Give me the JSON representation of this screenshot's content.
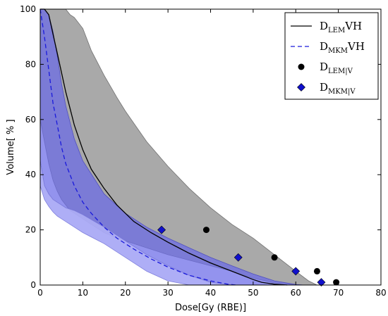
{
  "chart_data": {
    "type": "line",
    "title": "",
    "xlabel": "Dose[Gy (RBE)]",
    "ylabel": "Volume[ % ]",
    "xlim": [
      0,
      80
    ],
    "ylim": [
      0,
      100
    ],
    "xticks": [
      0,
      10,
      20,
      30,
      40,
      50,
      60,
      70,
      80
    ],
    "yticks": [
      0,
      20,
      40,
      60,
      80,
      100
    ],
    "grid": false,
    "legend_position": "top-right",
    "colors": {
      "lem": "#000000",
      "mkm": "#1a1adb",
      "lem_band": "#8c8c8c",
      "mkm_band": "#6a6ae8",
      "diamond": "#1010cc"
    },
    "legend": [
      {
        "main": "D",
        "sub": "LEM",
        "suffix": "VH",
        "marker": "solid-line"
      },
      {
        "main": "D",
        "sub": "MKM",
        "suffix": "VH",
        "marker": "dashed-line"
      },
      {
        "main": "D",
        "sub": "LEM|V",
        "suffix": "",
        "marker": "circle"
      },
      {
        "main": "D",
        "sub": "MKM|V",
        "suffix": "",
        "marker": "diamond"
      }
    ],
    "lem_curve": {
      "x": [
        0,
        1,
        2,
        3,
        4,
        5,
        6,
        7,
        8,
        10,
        12,
        15,
        18,
        22,
        26,
        30,
        35,
        40,
        45,
        50,
        52,
        55,
        58
      ],
      "y": [
        100,
        100,
        98,
        91,
        84,
        77,
        70,
        64,
        58,
        49,
        42,
        35,
        29,
        23,
        19,
        15.5,
        11.5,
        8,
        5,
        2,
        1,
        0.3,
        0
      ]
    },
    "lem_band": {
      "x": [
        0,
        1,
        2,
        3,
        4,
        5,
        6,
        7,
        8,
        10,
        12,
        15,
        18,
        20,
        25,
        30,
        35,
        40,
        45,
        50,
        55,
        60,
        63,
        65
      ],
      "upper": [
        100,
        100,
        100,
        100,
        100,
        100,
        100,
        98,
        97,
        93,
        85,
        76,
        68,
        63,
        52,
        43,
        35,
        28,
        22,
        17,
        11,
        5,
        1.5,
        0
      ],
      "lower": [
        60,
        52,
        44,
        38,
        34,
        31,
        29,
        27,
        26,
        24,
        22,
        19,
        17,
        16,
        13.5,
        11,
        9,
        7,
        5,
        2.5,
        0.8,
        0,
        0,
        0
      ]
    },
    "mkm_curve": {
      "x": [
        0,
        1,
        2,
        3,
        4,
        5,
        6,
        8,
        10,
        12,
        15,
        18,
        22,
        26,
        30,
        35,
        40,
        44,
        46
      ],
      "y": [
        100,
        90,
        78,
        66,
        58,
        50,
        44,
        36,
        30,
        26,
        21,
        17,
        13,
        9.5,
        6.5,
        3.5,
        1.5,
        0.3,
        0
      ]
    },
    "mkm_band": {
      "x": [
        0,
        1,
        2,
        3,
        4,
        5,
        6,
        8,
        10,
        15,
        20,
        25,
        30,
        35,
        40,
        45,
        50,
        55,
        60,
        62
      ],
      "upper": [
        100,
        100,
        98,
        92,
        83,
        73,
        65,
        53,
        45,
        33,
        26,
        21,
        17,
        13.5,
        10,
        7,
        4,
        1.5,
        0.2,
        0
      ],
      "lower": [
        45,
        36,
        33,
        31,
        30,
        29,
        28,
        27,
        25.5,
        21,
        16,
        11,
        7,
        3.5,
        1,
        0,
        0,
        0,
        0,
        0
      ]
    },
    "mkm_lower_band": {
      "x": [
        0,
        1,
        2,
        3,
        4,
        5,
        6,
        8,
        10,
        15,
        20,
        25,
        30,
        35,
        40,
        45
      ],
      "upper": [
        45,
        36,
        33,
        31,
        30,
        29,
        28,
        27,
        25.5,
        21,
        16,
        11,
        7,
        3.5,
        1,
        0
      ],
      "lower": [
        36,
        31,
        28.5,
        26.5,
        25,
        24,
        23,
        21,
        19,
        15,
        10,
        5,
        1.5,
        0,
        0,
        0
      ]
    },
    "lem_points": {
      "x": [
        39,
        55,
        65,
        69.5
      ],
      "y": [
        20,
        10,
        5,
        1
      ]
    },
    "mkm_points": {
      "x": [
        28.5,
        46.5,
        60,
        66
      ],
      "y": [
        20,
        10,
        5,
        1
      ]
    }
  }
}
